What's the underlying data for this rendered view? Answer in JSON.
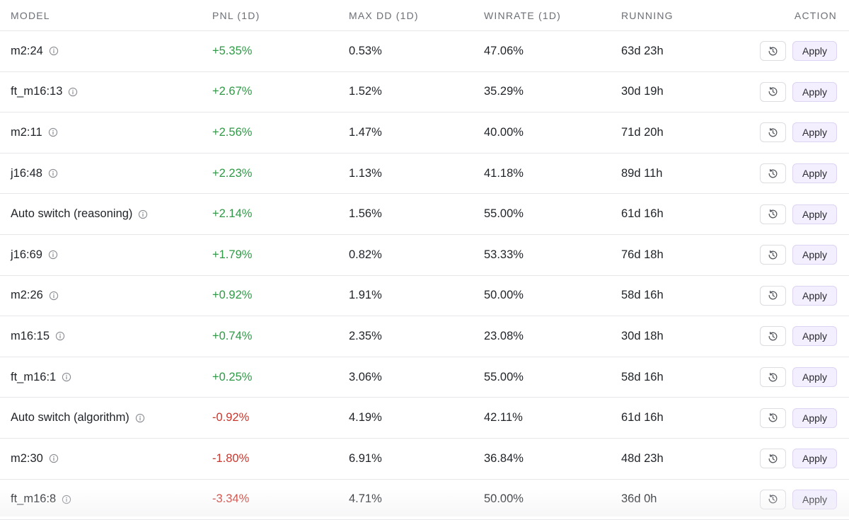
{
  "headers": {
    "model": "MODEL",
    "pnl": "PNL (1D)",
    "max_dd": "MAX DD (1D)",
    "winrate": "WINRATE (1D)",
    "running": "RUNNING",
    "action": "ACTION"
  },
  "apply_label": "Apply",
  "colors": {
    "positive": "#2f9a46",
    "negative": "#c8372d",
    "apply_bg": "#f3efff"
  },
  "rows": [
    {
      "model": "m2:24",
      "pnl": "+5.35%",
      "dir": "pos",
      "max_dd": "0.53%",
      "winrate": "47.06%",
      "running": "63d 23h"
    },
    {
      "model": "ft_m16:13",
      "pnl": "+2.67%",
      "dir": "pos",
      "max_dd": "1.52%",
      "winrate": "35.29%",
      "running": "30d 19h"
    },
    {
      "model": "m2:11",
      "pnl": "+2.56%",
      "dir": "pos",
      "max_dd": "1.47%",
      "winrate": "40.00%",
      "running": "71d 20h"
    },
    {
      "model": "j16:48",
      "pnl": "+2.23%",
      "dir": "pos",
      "max_dd": "1.13%",
      "winrate": "41.18%",
      "running": "89d 11h"
    },
    {
      "model": "Auto switch (reasoning)",
      "pnl": "+2.14%",
      "dir": "pos",
      "max_dd": "1.56%",
      "winrate": "55.00%",
      "running": "61d 16h"
    },
    {
      "model": "j16:69",
      "pnl": "+1.79%",
      "dir": "pos",
      "max_dd": "0.82%",
      "winrate": "53.33%",
      "running": "76d 18h"
    },
    {
      "model": "m2:26",
      "pnl": "+0.92%",
      "dir": "pos",
      "max_dd": "1.91%",
      "winrate": "50.00%",
      "running": "58d 16h"
    },
    {
      "model": "m16:15",
      "pnl": "+0.74%",
      "dir": "pos",
      "max_dd": "2.35%",
      "winrate": "23.08%",
      "running": "30d 18h"
    },
    {
      "model": "ft_m16:1",
      "pnl": "+0.25%",
      "dir": "pos",
      "max_dd": "3.06%",
      "winrate": "55.00%",
      "running": "58d 16h"
    },
    {
      "model": "Auto switch (algorithm)",
      "pnl": "-0.92%",
      "dir": "neg",
      "max_dd": "4.19%",
      "winrate": "42.11%",
      "running": "61d 16h"
    },
    {
      "model": "m2:30",
      "pnl": "-1.80%",
      "dir": "neg",
      "max_dd": "6.91%",
      "winrate": "36.84%",
      "running": "48d 23h"
    },
    {
      "model": "ft_m16:8",
      "pnl": "-3.34%",
      "dir": "neg",
      "max_dd": "4.71%",
      "winrate": "50.00%",
      "running": "36d 0h"
    }
  ]
}
